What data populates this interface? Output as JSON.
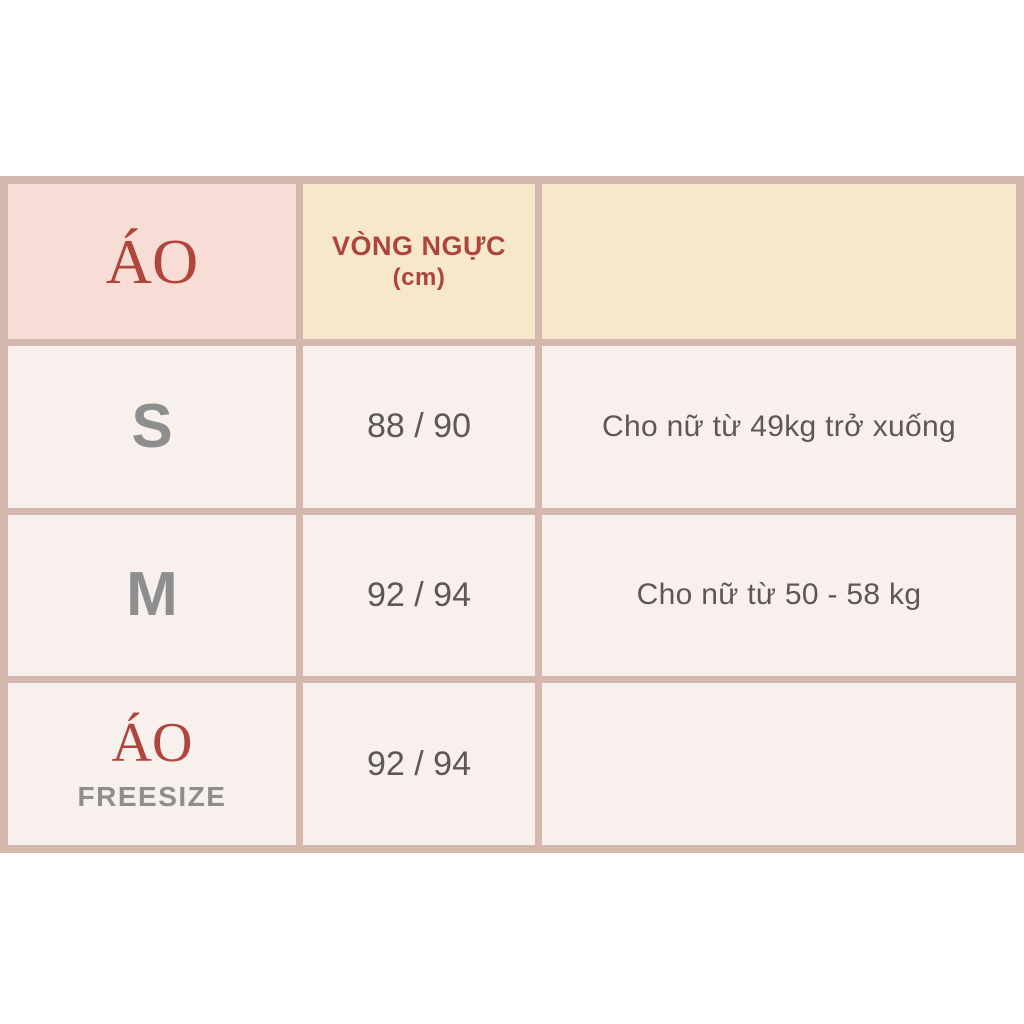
{
  "table": {
    "header": {
      "product_label": "ÁO",
      "chest_label": "VÒNG NGỰC",
      "chest_unit": "(cm)",
      "note_label": ""
    },
    "rows": [
      {
        "size": "S",
        "chest": "88 / 90",
        "note": "Cho nữ từ 49kg trở xuống"
      },
      {
        "size": "M",
        "chest": "92 / 94",
        "note": "Cho nữ từ 50 - 58 kg"
      },
      {
        "size_line1": "ÁO",
        "size_line2": "FREESIZE",
        "chest": "92 / 94",
        "note": ""
      }
    ]
  },
  "colors": {
    "grid_border": "#d4b7ad",
    "header_pink": "#f8ddd6",
    "header_cream": "#f7e7cb",
    "body_cell": "#f8f0ec",
    "accent_red": "#b0453c",
    "size_gray": "#8e8e8e",
    "text_dark": "#5e5855",
    "page_background": "#ffffff"
  },
  "chart_data": {
    "type": "table",
    "title": "ÁO",
    "columns": [
      "ÁO",
      "VÒNG NGỰC (cm)",
      ""
    ],
    "rows": [
      [
        "S",
        "88 / 90",
        "Cho nữ từ 49kg trở xuống"
      ],
      [
        "M",
        "92 / 94",
        "Cho nữ từ 50 - 58 kg"
      ],
      [
        "ÁO FREESIZE",
        "92 / 94",
        ""
      ]
    ],
    "layout": {
      "grid": true,
      "header_background": [
        "pink",
        "cream",
        "cream"
      ],
      "body_background": "off-white pink tint"
    }
  }
}
